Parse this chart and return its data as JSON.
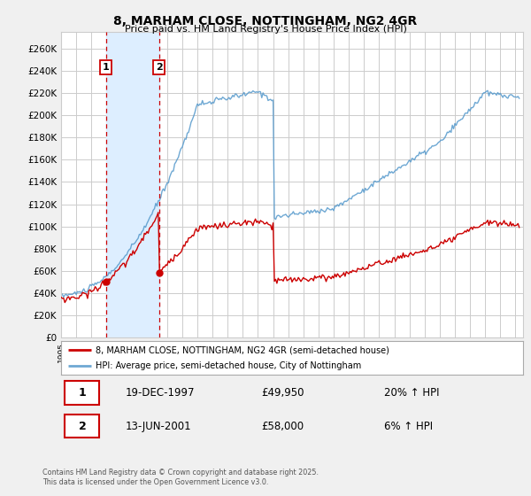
{
  "title1": "8, MARHAM CLOSE, NOTTINGHAM, NG2 4GR",
  "title2": "Price paid vs. HM Land Registry's House Price Index (HPI)",
  "bg_color": "#f0f0f0",
  "plot_bg_color": "#ffffff",
  "grid_color": "#cccccc",
  "red_color": "#cc0000",
  "blue_color": "#5599cc",
  "shade_color": "#ddeeff",
  "sale1_date": "19-DEC-1997",
  "sale1_price": 49950,
  "sale1_hpi": "20% ↑ HPI",
  "sale2_date": "13-JUN-2001",
  "sale2_price": 58000,
  "sale2_hpi": "6% ↑ HPI",
  "legend1": "8, MARHAM CLOSE, NOTTINGHAM, NG2 4GR (semi-detached house)",
  "legend2": "HPI: Average price, semi-detached house, City of Nottingham",
  "footer": "Contains HM Land Registry data © Crown copyright and database right 2025.\nThis data is licensed under the Open Government Licence v3.0.",
  "ylabel_ticks": [
    0,
    20000,
    40000,
    60000,
    80000,
    100000,
    120000,
    140000,
    160000,
    180000,
    200000,
    220000,
    240000,
    260000
  ],
  "ylim": [
    0,
    275000
  ],
  "xlim_start": 1995,
  "xlim_end": 2025.5
}
